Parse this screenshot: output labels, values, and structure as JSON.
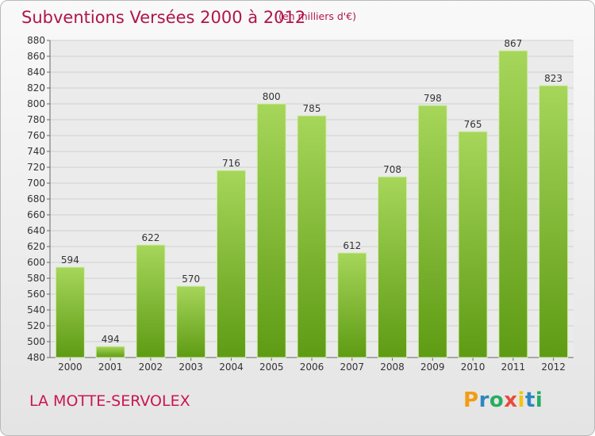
{
  "chart_data": {
    "type": "bar",
    "title": "Subventions Versées 2000 à 2012",
    "subtitle": "(en milliers d'€)",
    "categories": [
      "2000",
      "2001",
      "2002",
      "2003",
      "2004",
      "2005",
      "2006",
      "2007",
      "2008",
      "2009",
      "2010",
      "2011",
      "2012"
    ],
    "values": [
      594,
      494,
      622,
      570,
      716,
      800,
      785,
      612,
      708,
      798,
      765,
      867,
      823
    ],
    "ylim": [
      480,
      880
    ],
    "yticks": [
      480,
      500,
      520,
      540,
      560,
      580,
      600,
      620,
      640,
      660,
      680,
      700,
      720,
      740,
      760,
      780,
      800,
      820,
      840,
      860,
      880
    ],
    "xlabel": "",
    "ylabel": "",
    "grid": true,
    "bar_color_light": "#a6d65a",
    "bar_color_dark": "#5e9b14"
  },
  "commune": "LA MOTTE-SERVOLEX",
  "logo": {
    "letters": [
      "P",
      "r",
      "o",
      "x",
      "i",
      "t",
      "i"
    ],
    "colors": [
      "#f39c12",
      "#2e86c1",
      "#27ae60",
      "#e74c3c",
      "#f1c40f",
      "#2e86c1",
      "#27ae60"
    ]
  },
  "colors": {
    "title": "#b0154a",
    "commune": "#c8174f"
  }
}
